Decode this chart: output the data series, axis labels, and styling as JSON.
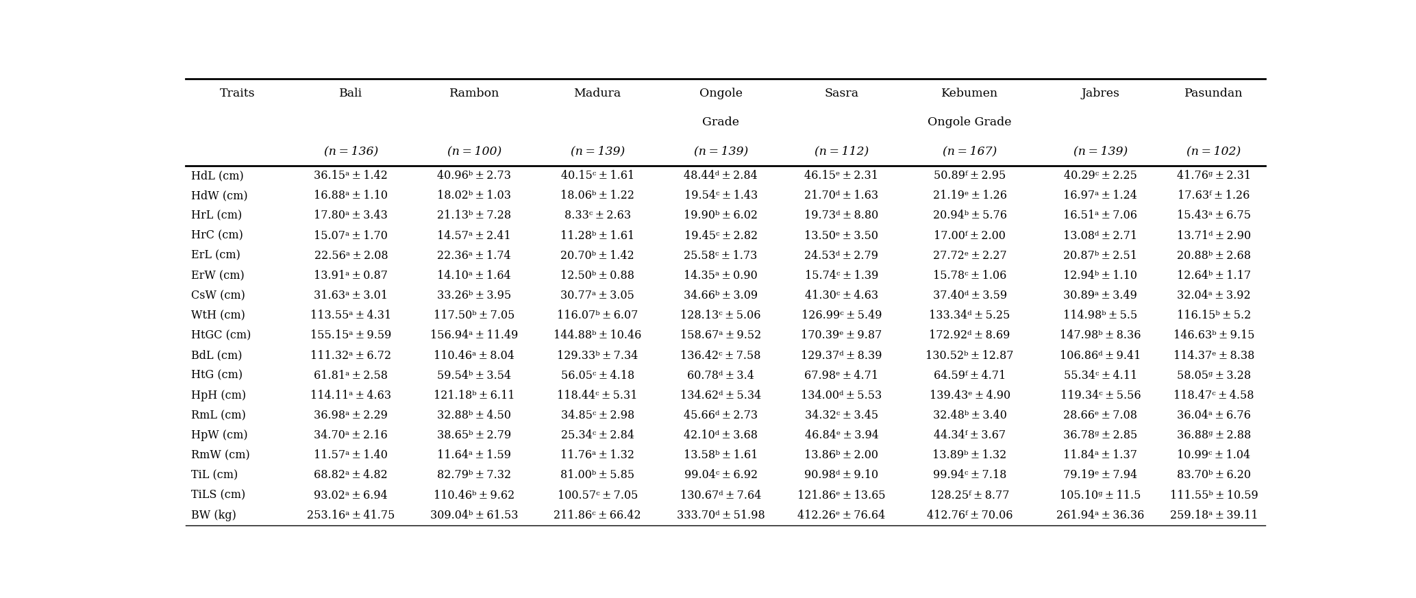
{
  "columns_line1": [
    "Traits",
    "Bali",
    "Rambon",
    "Madura",
    "Ongole",
    "Sasra",
    "Kebumen",
    "Jabres",
    "Pasundan"
  ],
  "columns_line2": [
    "",
    "",
    "",
    "",
    "Grade",
    "",
    "Ongole Grade",
    "",
    ""
  ],
  "n_values": [
    "",
    "(n = 136)",
    "(n = 100)",
    "(n = 139)",
    "(n = 139)",
    "(n = 112)",
    "(n = 167)",
    "(n = 139)",
    "(n = 102)"
  ],
  "rows": [
    [
      "HdL (cm)",
      "36.15ᵃ ± 1.42",
      "40.96ᵇ ± 2.73",
      "40.15ᶜ ± 1.61",
      "48.44ᵈ ± 2.84",
      "46.15ᵉ ± 2.31",
      "50.89ᶠ ± 2.95",
      "40.29ᶜ ± 2.25",
      "41.76ᵍ ± 2.31"
    ],
    [
      "HdW (cm)",
      "16.88ᵃ ± 1.10",
      "18.02ᵇ ± 1.03",
      "18.06ᵇ ± 1.22",
      "19.54ᶜ ± 1.43",
      "21.70ᵈ ± 1.63",
      "21.19ᵉ ± 1.26",
      "16.97ᵃ ± 1.24",
      "17.63ᶠ ± 1.26"
    ],
    [
      "HrL (cm)",
      "17.80ᵃ ± 3.43",
      "21.13ᵇ ± 7.28",
      "8.33ᶜ ± 2.63",
      "19.90ᵇ ± 6.02",
      "19.73ᵈ ± 8.80",
      "20.94ᵇ ± 5.76",
      "16.51ᵃ ± 7.06",
      "15.43ᵃ ± 6.75"
    ],
    [
      "HrC (cm)",
      "15.07ᵃ ± 1.70",
      "14.57ᵃ ± 2.41",
      "11.28ᵇ ± 1.61",
      "19.45ᶜ ± 2.82",
      "13.50ᵉ ± 3.50",
      "17.00ᶠ ± 2.00",
      "13.08ᵈ ± 2.71",
      "13.71ᵈ ± 2.90"
    ],
    [
      "ErL (cm)",
      "22.56ᵃ ± 2.08",
      "22.36ᵃ ± 1.74",
      "20.70ᵇ ± 1.42",
      "25.58ᶜ ± 1.73",
      "24.53ᵈ ± 2.79",
      "27.72ᵉ ± 2.27",
      "20.87ᵇ ± 2.51",
      "20.88ᵇ ± 2.68"
    ],
    [
      "ErW (cm)",
      "13.91ᵃ ± 0.87",
      "14.10ᵃ ± 1.64",
      "12.50ᵇ ± 0.88",
      "14.35ᵃ ± 0.90",
      "15.74ᶜ ± 1.39",
      "15.78ᶜ ± 1.06",
      "12.94ᵇ ± 1.10",
      "12.64ᵇ ± 1.17"
    ],
    [
      "CsW (cm)",
      "31.63ᵃ ± 3.01",
      "33.26ᵇ ± 3.95",
      "30.77ᵃ ± 3.05",
      "34.66ᵇ ± 3.09",
      "41.30ᶜ ± 4.63",
      "37.40ᵈ ± 3.59",
      "30.89ᵃ ± 3.49",
      "32.04ᵃ ± 3.92"
    ],
    [
      "WtH (cm)",
      "113.55ᵃ ± 4.31",
      "117.50ᵇ ± 7.05",
      "116.07ᵇ ± 6.07",
      "128.13ᶜ ± 5.06",
      "126.99ᶜ ± 5.49",
      "133.34ᵈ ± 5.25",
      "114.98ᵇ ± 5.5",
      "116.15ᵇ ± 5.2"
    ],
    [
      "HtGC (cm)",
      "155.15ᵃ ± 9.59",
      "156.94ᵃ ± 11.49",
      "144.88ᵇ ± 10.46",
      "158.67ᵃ ± 9.52",
      "170.39ᵉ ± 9.87",
      "172.92ᵈ ± 8.69",
      "147.98ᵇ ± 8.36",
      "146.63ᵇ ± 9.15"
    ],
    [
      "BdL (cm)",
      "111.32ᵃ ± 6.72",
      "110.46ᵃ ± 8.04",
      "129.33ᵇ ± 7.34",
      "136.42ᶜ ± 7.58",
      "129.37ᵈ ± 8.39",
      "130.52ᵇ ± 12.87",
      "106.86ᵈ ± 9.41",
      "114.37ᵉ ± 8.38"
    ],
    [
      "HtG (cm)",
      "61.81ᵃ ± 2.58",
      "59.54ᵇ ± 3.54",
      "56.05ᶜ ± 4.18",
      "60.78ᵈ ± 3.4",
      "67.98ᵉ ± 4.71",
      "64.59ᶠ ± 4.71",
      "55.34ᶜ ± 4.11",
      "58.05ᵍ ± 3.28"
    ],
    [
      "HpH (cm)",
      "114.11ᵃ ± 4.63",
      "121.18ᵇ ± 6.11",
      "118.44ᶜ ± 5.31",
      "134.62ᵈ ± 5.34",
      "134.00ᵈ ± 5.53",
      "139.43ᵉ ± 4.90",
      "119.34ᶜ ± 5.56",
      "118.47ᶜ ± 4.58"
    ],
    [
      "RmL (cm)",
      "36.98ᵃ ± 2.29",
      "32.88ᵇ ± 4.50",
      "34.85ᶜ ± 2.98",
      "45.66ᵈ ± 2.73",
      "34.32ᶜ ± 3.45",
      "32.48ᵇ ± 3.40",
      "28.66ᵉ ± 7.08",
      "36.04ᵃ ± 6.76"
    ],
    [
      "HpW (cm)",
      "34.70ᵃ ± 2.16",
      "38.65ᵇ ± 2.79",
      "25.34ᶜ ± 2.84",
      "42.10ᵈ ± 3.68",
      "46.84ᵉ ± 3.94",
      "44.34ᶠ ± 3.67",
      "36.78ᵍ ± 2.85",
      "36.88ᵍ ± 2.88"
    ],
    [
      "RmW (cm)",
      "11.57ᵃ ± 1.40",
      "11.64ᵃ ± 1.59",
      "11.76ᵃ ± 1.32",
      "13.58ᵇ ± 1.61",
      "13.86ᵇ ± 2.00",
      "13.89ᵇ ± 1.32",
      "11.84ᵃ ± 1.37",
      "10.99ᶜ ± 1.04"
    ],
    [
      "TiL (cm)",
      "68.82ᵃ ± 4.82",
      "82.79ᵇ ± 7.32",
      "81.00ᵇ ± 5.85",
      "99.04ᶜ ± 6.92",
      "90.98ᵈ ± 9.10",
      "99.94ᶜ ± 7.18",
      "79.19ᵉ ± 7.94",
      "83.70ᵇ ± 6.20"
    ],
    [
      "TiLS (cm)",
      "93.02ᵃ ± 6.94",
      "110.46ᵇ ± 9.62",
      "100.57ᶜ ± 7.05",
      "130.67ᵈ ± 7.64",
      "121.86ᵉ ± 13.65",
      "128.25ᶠ ± 8.77",
      "105.10ᵍ ± 11.5",
      "111.55ᵇ ± 10.59"
    ],
    [
      "BW (kg)",
      "253.16ᵃ ± 41.75",
      "309.04ᵇ ± 61.53",
      "211.86ᶜ ± 66.42",
      "333.70ᵈ ± 51.98",
      "412.26ᵉ ± 76.64",
      "412.76ᶠ ± 70.06",
      "261.94ᵃ ± 36.36",
      "259.18ᵃ ± 39.11"
    ]
  ],
  "col_widths_rel": [
    1.05,
    1.25,
    1.25,
    1.25,
    1.25,
    1.2,
    1.4,
    1.25,
    1.05
  ],
  "bg_color": "#ffffff",
  "font_size": 11.5,
  "header_font_size": 12.5
}
